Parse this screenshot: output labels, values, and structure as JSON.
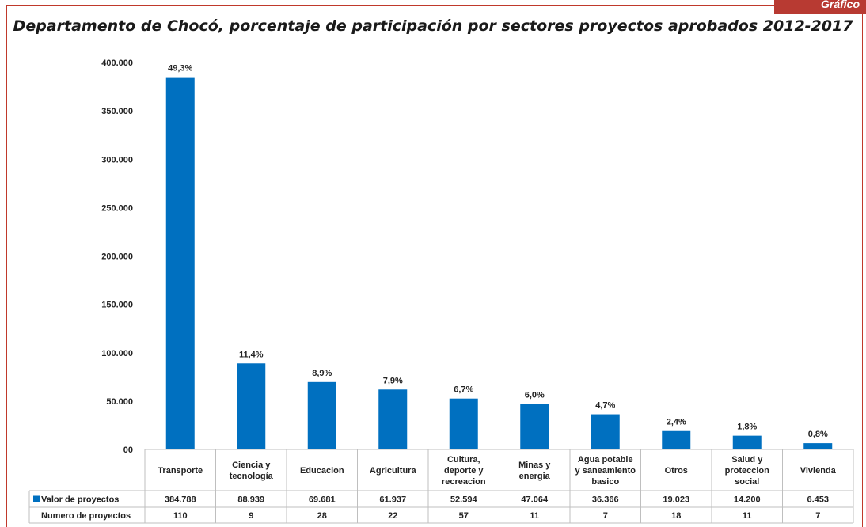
{
  "header": {
    "tab_label": "Gráfico"
  },
  "chart_data": {
    "type": "bar",
    "title": "Departamento de Chocó, porcentaje de participación por sectores proyectos aprobados 2012-2017",
    "categories": [
      [
        "Transporte"
      ],
      [
        "Ciencia y",
        "tecnología"
      ],
      [
        "Educacion"
      ],
      [
        "Agricultura"
      ],
      [
        "Cultura,",
        "deporte y",
        "recreacion"
      ],
      [
        "Minas y",
        "energia"
      ],
      [
        "Agua potable",
        "y saneamiento",
        "basico"
      ],
      [
        "Otros"
      ],
      [
        "Salud y",
        "proteccion",
        "social"
      ],
      [
        "Vivienda"
      ]
    ],
    "series": [
      {
        "name": "Valor de proyectos",
        "values": [
          384788,
          88939,
          69681,
          61937,
          52594,
          47064,
          36366,
          19023,
          14200,
          6453
        ],
        "labels": [
          "384.788",
          "88.939",
          "69.681",
          "61.937",
          "52.594",
          "47.064",
          "36.366",
          "19.023",
          "14.200",
          "6.453"
        ],
        "color": "#0070c0"
      }
    ],
    "percent_labels": [
      "49,3%",
      "11,4%",
      "8,9%",
      "7,9%",
      "6,7%",
      "6,0%",
      "4,7%",
      "2,4%",
      "1,8%",
      "0,8%"
    ],
    "table_rows": [
      {
        "label": "Valor de proyectos",
        "legend_key": true,
        "values": [
          "384.788",
          "88.939",
          "69.681",
          "61.937",
          "52.594",
          "47.064",
          "36.366",
          "19.023",
          "14.200",
          "6.453"
        ]
      },
      {
        "label": "Numero de proyectos",
        "legend_key": false,
        "values": [
          "110",
          "9",
          "28",
          "22",
          "57",
          "11",
          "7",
          "18",
          "11",
          "7"
        ]
      }
    ],
    "ylim": [
      0,
      400000
    ],
    "yticks": [
      0,
      50000,
      100000,
      150000,
      200000,
      250000,
      300000,
      350000,
      400000
    ],
    "ytick_labels": [
      "00",
      "50.000",
      "100.000",
      "150.000",
      "200.000",
      "250.000",
      "300.000",
      "350.000",
      "400.000"
    ],
    "grid": false
  }
}
